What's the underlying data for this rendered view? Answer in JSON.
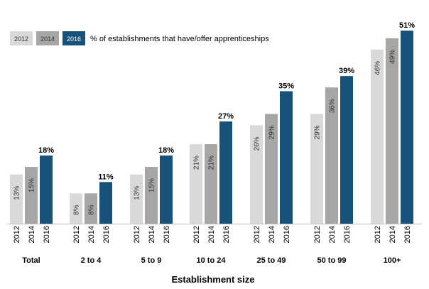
{
  "chart_data": {
    "type": "bar",
    "title": "% of establishments that have/offer apprenticeships",
    "xlabel": "Establishment size",
    "ylabel": "",
    "ylim": [
      0,
      51
    ],
    "categories": [
      "Total",
      "2 to 4",
      "5 to 9",
      "10 to 24",
      "25 to 49",
      "50 to 99",
      "100+"
    ],
    "series": [
      {
        "name": "2012",
        "color": "#d9d9d9",
        "values": [
          13,
          8,
          13,
          21,
          26,
          29,
          46
        ]
      },
      {
        "name": "2014",
        "color": "#a6a6a6",
        "values": [
          15,
          8,
          15,
          21,
          29,
          36,
          49
        ]
      },
      {
        "name": "2016",
        "color": "#17527a",
        "values": [
          18,
          11,
          18,
          27,
          35,
          39,
          51
        ]
      }
    ],
    "value_suffix": "%",
    "grid": false,
    "legend_position": "top-left"
  }
}
